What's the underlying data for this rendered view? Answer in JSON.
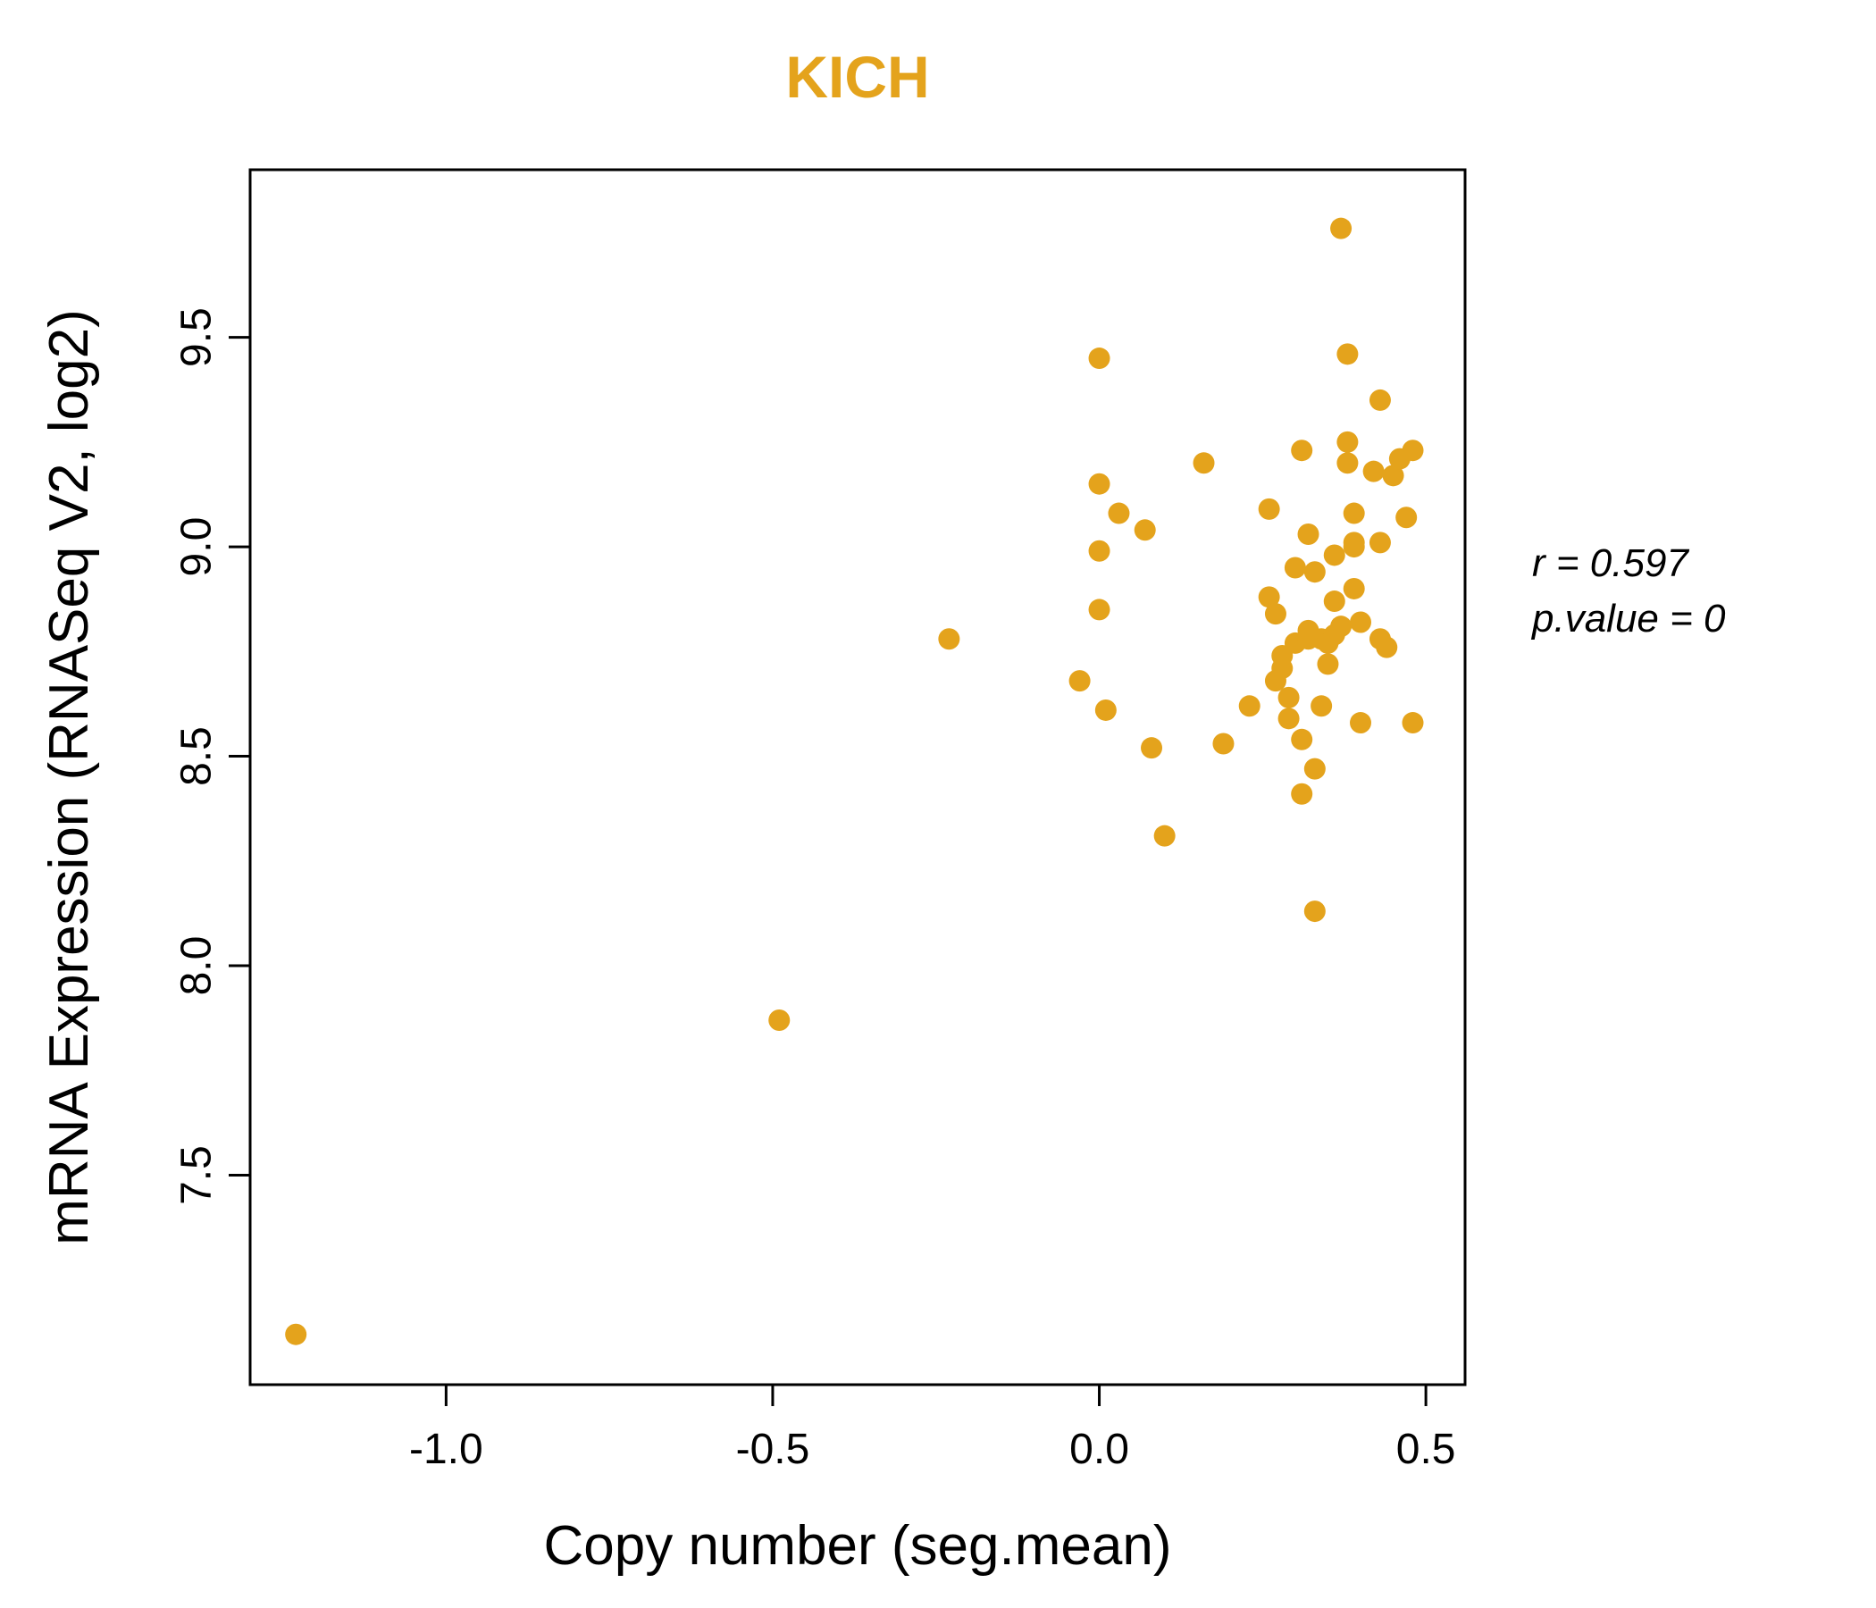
{
  "chart_data": {
    "type": "scatter",
    "title": "KICH",
    "title_color": "#E4A31C",
    "point_color": "#E4A31C",
    "xlabel": "Copy number (seg.mean)",
    "ylabel": "mRNA Expression (RNASeq V2, log2)",
    "xlim": [
      -1.3,
      0.56
    ],
    "ylim": [
      7.0,
      9.9
    ],
    "grid": false,
    "x_tick_values": [
      -1.0,
      -0.5,
      0.0,
      0.5
    ],
    "x_tick_labels": [
      "-1.0",
      "-0.5",
      "0.0",
      "0.5"
    ],
    "y_tick_values": [
      7.5,
      8.0,
      8.5,
      9.0,
      9.5
    ],
    "y_tick_labels": [
      "7.5",
      "8.0",
      "8.5",
      "9.0",
      "9.5"
    ],
    "annotation": {
      "line1": "r = 0.597",
      "line2": "p.value = 0"
    },
    "points": [
      [
        -1.23,
        7.12
      ],
      [
        -0.49,
        7.87
      ],
      [
        -0.23,
        8.78
      ],
      [
        -0.03,
        8.68
      ],
      [
        0.0,
        9.45
      ],
      [
        0.0,
        9.15
      ],
      [
        0.0,
        8.99
      ],
      [
        0.0,
        8.85
      ],
      [
        0.01,
        8.61
      ],
      [
        0.03,
        9.08
      ],
      [
        0.07,
        9.04
      ],
      [
        0.08,
        8.52
      ],
      [
        0.1,
        8.31
      ],
      [
        0.16,
        9.2
      ],
      [
        0.19,
        8.53
      ],
      [
        0.23,
        8.62
      ],
      [
        0.26,
        8.88
      ],
      [
        0.26,
        9.09
      ],
      [
        0.27,
        8.84
      ],
      [
        0.27,
        8.68
      ],
      [
        0.28,
        8.74
      ],
      [
        0.28,
        8.71
      ],
      [
        0.29,
        8.64
      ],
      [
        0.29,
        8.59
      ],
      [
        0.3,
        8.77
      ],
      [
        0.3,
        8.95
      ],
      [
        0.31,
        8.54
      ],
      [
        0.31,
        8.41
      ],
      [
        0.31,
        9.23
      ],
      [
        0.32,
        9.03
      ],
      [
        0.32,
        8.8
      ],
      [
        0.32,
        8.78
      ],
      [
        0.33,
        8.47
      ],
      [
        0.33,
        8.13
      ],
      [
        0.33,
        8.94
      ],
      [
        0.34,
        8.78
      ],
      [
        0.34,
        8.62
      ],
      [
        0.35,
        8.77
      ],
      [
        0.35,
        8.72
      ],
      [
        0.36,
        8.79
      ],
      [
        0.36,
        8.87
      ],
      [
        0.36,
        8.98
      ],
      [
        0.37,
        8.81
      ],
      [
        0.37,
        9.76
      ],
      [
        0.38,
        9.46
      ],
      [
        0.38,
        9.25
      ],
      [
        0.38,
        9.2
      ],
      [
        0.39,
        9.08
      ],
      [
        0.39,
        9.01
      ],
      [
        0.39,
        9.0
      ],
      [
        0.39,
        8.9
      ],
      [
        0.4,
        8.82
      ],
      [
        0.4,
        8.58
      ],
      [
        0.43,
        9.35
      ],
      [
        0.42,
        9.18
      ],
      [
        0.43,
        9.01
      ],
      [
        0.43,
        8.78
      ],
      [
        0.44,
        8.76
      ],
      [
        0.45,
        9.17
      ],
      [
        0.46,
        9.21
      ],
      [
        0.47,
        9.07
      ],
      [
        0.48,
        8.58
      ],
      [
        0.48,
        9.23
      ]
    ]
  }
}
